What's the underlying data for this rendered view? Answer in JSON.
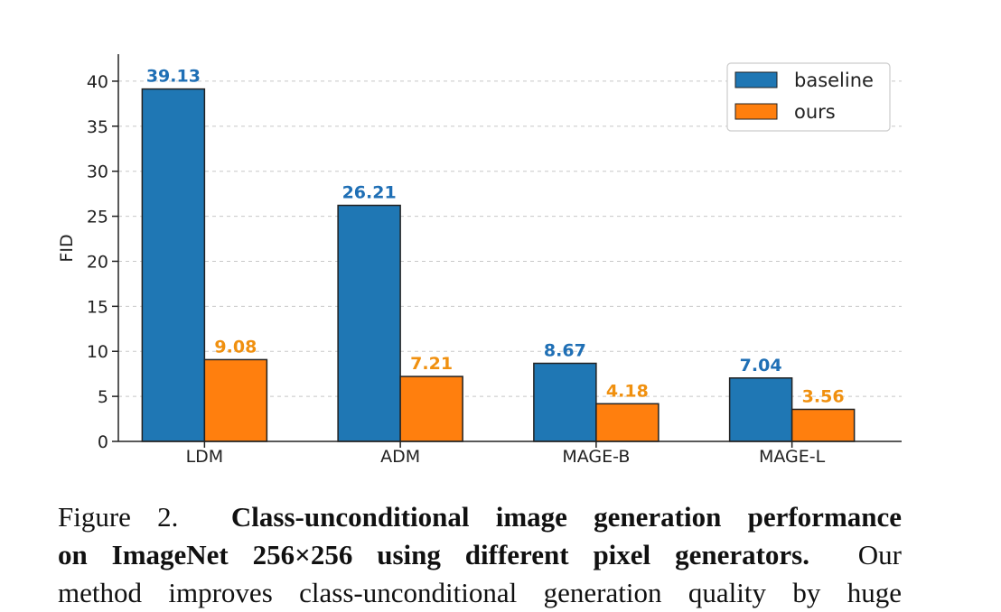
{
  "chart_data": {
    "type": "bar",
    "categories": [
      "LDM",
      "ADM",
      "MAGE-B",
      "MAGE-L"
    ],
    "series": [
      {
        "name": "baseline",
        "values": [
          39.13,
          26.21,
          8.67,
          7.04
        ],
        "labels": [
          "39.13",
          "26.21",
          "8.67",
          "7.04"
        ],
        "color": "#1f77b4",
        "label_color": "#1f6fb5"
      },
      {
        "name": "ours",
        "values": [
          9.08,
          7.21,
          4.18,
          3.56
        ],
        "labels": [
          "9.08",
          "7.21",
          "4.18",
          "3.56"
        ],
        "color": "#ff7f0e",
        "label_color": "#f0900f"
      }
    ],
    "xlabel": "",
    "ylabel": "FID",
    "ylim": [
      0,
      43
    ],
    "yticks": [
      0,
      5,
      10,
      15,
      20,
      25,
      30,
      35,
      40
    ],
    "grid": "horizontal dashed",
    "legend": "top-right"
  },
  "caption": {
    "label": "Figure 2.",
    "bold_line1": "Class-unconditional image generation performance",
    "bold_line2": "on ImageNet 256×256 using different pixel generators.",
    "rest_line2": "Our",
    "line3": "method improves class-unconditional generation quality by huge"
  }
}
